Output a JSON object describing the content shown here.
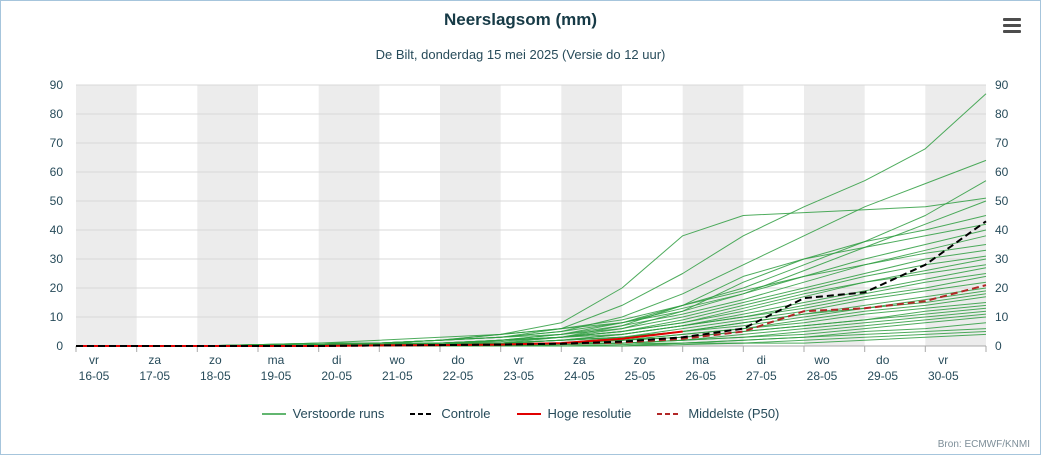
{
  "header": {
    "title": "Neerslagsom (mm)",
    "subtitle": "De Bilt, donderdag 15 mei 2025 (Versie do 12 uur)"
  },
  "menu": {
    "icon": "hamburger-icon"
  },
  "source": {
    "text": "Bron: ECMWF/KNMI"
  },
  "legend": {
    "items": [
      {
        "label": "Verstoorde runs",
        "color": "#2f9e41",
        "style": "solid",
        "width": 1.5
      },
      {
        "label": "Controle",
        "color": "#000000",
        "style": "dashed",
        "width": 2
      },
      {
        "label": "Hoge resolutie",
        "color": "#e00000",
        "style": "solid",
        "width": 2
      },
      {
        "label": "Middelste (P50)",
        "color": "#b22727",
        "style": "dashed",
        "width": 2
      }
    ]
  },
  "chart_data": {
    "type": "line",
    "title": "Neerslagsom (mm)",
    "subtitle": "De Bilt, donderdag 15 mei 2025 (Versie do 12 uur)",
    "ylabel": "Neerslagsom (mm)",
    "ylim": [
      0,
      90
    ],
    "y_ticks": [
      0,
      10,
      20,
      30,
      40,
      50,
      60,
      70,
      80,
      90
    ],
    "grid": true,
    "legend_position": "bottom",
    "plot_bands": {
      "fill": "#ececec",
      "alternate_start_index": 0
    },
    "x_axis": {
      "unit": "day",
      "total_days": 15,
      "categories": [
        {
          "day": "vr",
          "date": "16-05"
        },
        {
          "day": "za",
          "date": "17-05"
        },
        {
          "day": "zo",
          "date": "18-05"
        },
        {
          "day": "ma",
          "date": "19-05"
        },
        {
          "day": "di",
          "date": "20-05"
        },
        {
          "day": "wo",
          "date": "21-05"
        },
        {
          "day": "do",
          "date": "22-05"
        },
        {
          "day": "vr",
          "date": "23-05"
        },
        {
          "day": "za",
          "date": "24-05"
        },
        {
          "day": "zo",
          "date": "25-05"
        },
        {
          "day": "ma",
          "date": "26-05"
        },
        {
          "day": "di",
          "date": "27-05"
        },
        {
          "day": "wo",
          "date": "28-05"
        },
        {
          "day": "do",
          "date": "29-05"
        },
        {
          "day": "vr",
          "date": "30-05"
        }
      ]
    },
    "series": [
      {
        "name": "Verstoorde runs",
        "type": "ensemble",
        "color": "#2f9e41",
        "width": 1,
        "opacity": 0.85,
        "dash": null,
        "step_days": 1,
        "members": [
          [
            0,
            0,
            0,
            0,
            0.5,
            1,
            2,
            3,
            6,
            14,
            25,
            38,
            48,
            57,
            68,
            87
          ],
          [
            0,
            0,
            0,
            0.5,
            1,
            1,
            2,
            3,
            5,
            10,
            18,
            28,
            38,
            48,
            56,
            64
          ],
          [
            0,
            0,
            0,
            0,
            0.5,
            1,
            2,
            4,
            6,
            9,
            14,
            20,
            28,
            36,
            45,
            57
          ],
          [
            0,
            0,
            0,
            0,
            0,
            1,
            2,
            4,
            8,
            20,
            38,
            45,
            46,
            47,
            48,
            51
          ],
          [
            0,
            0,
            0,
            0.5,
            1,
            2,
            3,
            4,
            6,
            8,
            12,
            18,
            26,
            34,
            42,
            50
          ],
          [
            0,
            0,
            0,
            0,
            0.5,
            1,
            1,
            2,
            3,
            6,
            12,
            22,
            30,
            36,
            40,
            45
          ],
          [
            0,
            0,
            0,
            0,
            0,
            0,
            0.5,
            1,
            3,
            7,
            14,
            24,
            30,
            34,
            38,
            42
          ],
          [
            0,
            0,
            0,
            0,
            0.5,
            1,
            2,
            3,
            5,
            8,
            13,
            18,
            24,
            30,
            35,
            40
          ],
          [
            0,
            0,
            0,
            0,
            0,
            0.5,
            1,
            2,
            4,
            7,
            11,
            16,
            22,
            28,
            33,
            38
          ],
          [
            0,
            0,
            0,
            0,
            0,
            0,
            0.5,
            2,
            4,
            8,
            14,
            19,
            24,
            28,
            32,
            35
          ],
          [
            0,
            0,
            0,
            0.5,
            1,
            1,
            2,
            3,
            4,
            6,
            10,
            15,
            20,
            25,
            30,
            33
          ],
          [
            0,
            0,
            0,
            0,
            0,
            0.5,
            1,
            1.5,
            3,
            5,
            9,
            14,
            19,
            24,
            28,
            31
          ],
          [
            0,
            0,
            0,
            0,
            0.5,
            1,
            1,
            2,
            3,
            5,
            8,
            12,
            17,
            22,
            26,
            30
          ],
          [
            0,
            0,
            0,
            0,
            0,
            0,
            1,
            2,
            3,
            5,
            8,
            13,
            18,
            22,
            25,
            28
          ],
          [
            0,
            0,
            0,
            0,
            0,
            0.5,
            1,
            1,
            2,
            4,
            7,
            11,
            15,
            19,
            23,
            27
          ],
          [
            0,
            0,
            0,
            0,
            0,
            0,
            0.5,
            1,
            2,
            4,
            7,
            10,
            14,
            18,
            22,
            25
          ],
          [
            0,
            0,
            0,
            0.5,
            0.5,
            1,
            1,
            2,
            3,
            4,
            7,
            10,
            13,
            17,
            20,
            24
          ],
          [
            0,
            0,
            0,
            0,
            0,
            0,
            0.5,
            1,
            2,
            3,
            6,
            9,
            12,
            16,
            19,
            22
          ],
          [
            0,
            0,
            0,
            0,
            0,
            0.5,
            1,
            1,
            2,
            3,
            5,
            8,
            11,
            14,
            17,
            20
          ],
          [
            0,
            0,
            0,
            0,
            0,
            0,
            0,
            0.5,
            1,
            3,
            5,
            8,
            11,
            13,
            16,
            19
          ],
          [
            0,
            0,
            0,
            0,
            0.5,
            0.5,
            1,
            1,
            2,
            3,
            5,
            7,
            10,
            13,
            15,
            18
          ],
          [
            0,
            0,
            0,
            0,
            0,
            0,
            0.5,
            1,
            1,
            2,
            4,
            6,
            9,
            12,
            14,
            17
          ],
          [
            0,
            0,
            0,
            0,
            0,
            0,
            0,
            0.5,
            1,
            2,
            4,
            6,
            8,
            11,
            13,
            15
          ],
          [
            0,
            0,
            0,
            0,
            0,
            0.5,
            0.5,
            1,
            1,
            2,
            3,
            5,
            7,
            9,
            12,
            14
          ],
          [
            0,
            0,
            0,
            0,
            0,
            0,
            0,
            0,
            1,
            2,
            3,
            5,
            7,
            9,
            11,
            13
          ],
          [
            0,
            0,
            0,
            0,
            0,
            0,
            0.5,
            0.5,
            1,
            1,
            2,
            4,
            6,
            8,
            10,
            12
          ],
          [
            0,
            0,
            0,
            0,
            0,
            0,
            0,
            0.5,
            1,
            1,
            2,
            3,
            5,
            7,
            9,
            11
          ],
          [
            0,
            0,
            0,
            0,
            0,
            0,
            0,
            0,
            0.5,
            1,
            2,
            3,
            4,
            6,
            8,
            10
          ],
          [
            0,
            0,
            0,
            0,
            0,
            0,
            0,
            0,
            0.5,
            1,
            1,
            2,
            3,
            5,
            6,
            8
          ],
          [
            0,
            0,
            0,
            0,
            0,
            0,
            0,
            0,
            0,
            0.5,
            1,
            2,
            3,
            4,
            5,
            6
          ],
          [
            0,
            0,
            0,
            0,
            0,
            0,
            0,
            0,
            0,
            0,
            1,
            1,
            2,
            3,
            4,
            5
          ],
          [
            0,
            0,
            0,
            0,
            0,
            0,
            0,
            0,
            0,
            0,
            0.5,
            1,
            1,
            2,
            3,
            4
          ]
        ]
      },
      {
        "name": "Hoge resolutie",
        "type": "line",
        "color": "#e00000",
        "width": 2,
        "dash": null,
        "step_days": 1,
        "values": [
          0,
          0,
          0,
          0,
          0,
          0.2,
          0.3,
          0.5,
          1,
          2.5,
          5
        ]
      },
      {
        "name": "Middelste (P50)",
        "type": "line",
        "color": "#b22727",
        "width": 2,
        "dash": "7,4",
        "step_days": 1,
        "values": [
          0,
          0,
          0,
          0,
          0,
          0.2,
          0.3,
          0.5,
          0.8,
          1.2,
          2.5,
          5,
          12,
          13,
          15.5,
          21
        ]
      },
      {
        "name": "Controle",
        "type": "line",
        "color": "#000000",
        "width": 2,
        "dash": "7,4",
        "step_days": 1,
        "values": [
          0,
          0,
          0,
          0,
          0,
          0.2,
          0.3,
          0.5,
          0.8,
          1.5,
          3,
          6,
          16.5,
          18.5,
          28,
          43
        ]
      }
    ]
  }
}
